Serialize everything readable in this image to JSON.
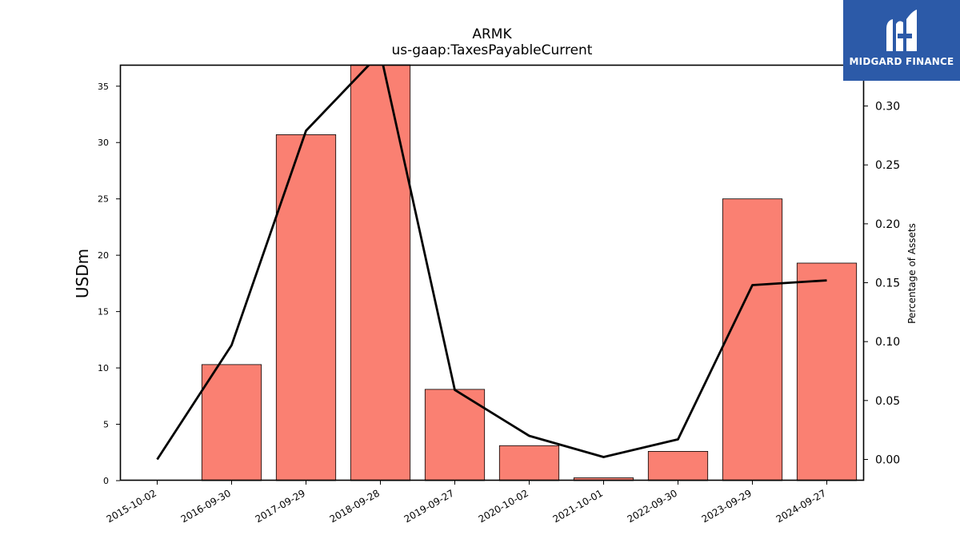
{
  "brand": {
    "name": "MIDGARD FINANCE",
    "bg_color": "#2c5aa8",
    "icon": "midgard-m-logo-icon"
  },
  "chart_data": {
    "type": "bar",
    "title": "ARMK",
    "subtitle": "us-gaap:TaxesPayableCurrent",
    "categories": [
      "2015-10-02",
      "2016-09-30",
      "2017-09-29",
      "2018-09-28",
      "2019-09-27",
      "2020-10-02",
      "2021-10-01",
      "2022-09-30",
      "2023-09-29",
      "2024-09-27"
    ],
    "series": [
      {
        "type": "bar",
        "axis": "left",
        "color": "#fa8072",
        "values": [
          0,
          10.3,
          30.7,
          36.9,
          8.1,
          3.1,
          0.25,
          2.6,
          25.0,
          19.3
        ]
      },
      {
        "type": "line",
        "axis": "right",
        "color": "#000000",
        "values": [
          0.0,
          0.097,
          0.279,
          0.345,
          0.059,
          0.02,
          0.002,
          0.017,
          0.148,
          0.152
        ]
      }
    ],
    "ylabel": "USDm",
    "ylabel_right": "Percentage of Assets",
    "ylim": [
      0,
      36.9
    ],
    "ylim_right": [
      -0.018,
      0.335
    ],
    "yticks": [
      0,
      5,
      10,
      15,
      20,
      25,
      30,
      35
    ],
    "yticks_right": [
      "0.00",
      "0.05",
      "0.10",
      "0.15",
      "0.20",
      "0.25",
      "0.30"
    ],
    "grid": false,
    "legend": "none"
  }
}
